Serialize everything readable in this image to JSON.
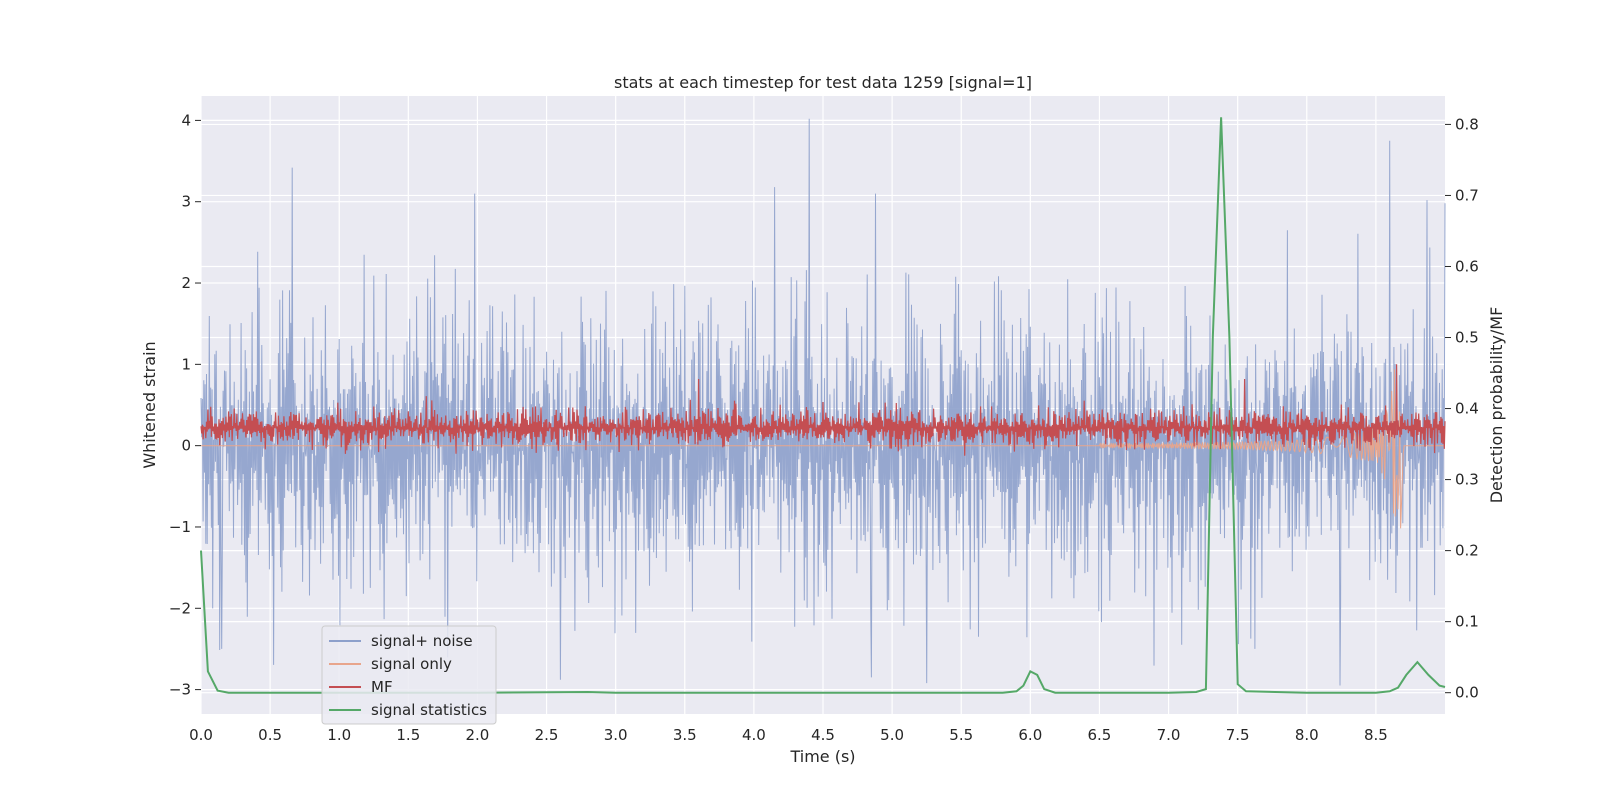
{
  "chart_data": {
    "type": "line",
    "title": "stats at each timestep for test data 1259 [signal=1]",
    "xlabel": "Time (s)",
    "ylabel_left": "Whitened strain",
    "ylabel_right": "Detection probability/MF",
    "xlim": [
      0.0,
      9.0
    ],
    "ylim_left": [
      -3.3,
      4.3
    ],
    "ylim_right": [
      -0.03,
      0.84
    ],
    "grid": true,
    "legend_position": "lower-left",
    "xticks": [
      0.0,
      0.5,
      1.0,
      1.5,
      2.0,
      2.5,
      3.0,
      3.5,
      4.0,
      4.5,
      5.0,
      5.5,
      6.0,
      6.5,
      7.0,
      7.5,
      8.0,
      8.5
    ],
    "xtick_labels": [
      "0.0",
      "0.5",
      "1.0",
      "1.5",
      "2.0",
      "2.5",
      "3.0",
      "3.5",
      "4.0",
      "4.5",
      "5.0",
      "5.5",
      "6.0",
      "6.5",
      "7.0",
      "7.5",
      "8.0",
      "8.5"
    ],
    "yticks_left": [
      -3,
      -2,
      -1,
      0,
      1,
      2,
      3,
      4
    ],
    "ytick_labels_left": [
      "−3",
      "−2",
      "−1",
      "0",
      "1",
      "2",
      "3",
      "4"
    ],
    "yticks_right": [
      0.0,
      0.1,
      0.2,
      0.3,
      0.4,
      0.5,
      0.6,
      0.7,
      0.8
    ],
    "ytick_labels_right": [
      "0.0",
      "0.1",
      "0.2",
      "0.3",
      "0.4",
      "0.5",
      "0.6",
      "0.7",
      "0.8"
    ],
    "series": [
      {
        "name": "signal+ noise",
        "axis": "left",
        "color": "#8da0cb",
        "kind": "noise",
        "amplitude_std": 0.95,
        "sample_count": 1800,
        "peaks": [
          [
            0.66,
            3.42
          ],
          [
            1.98,
            3.1
          ],
          [
            4.4,
            4.02
          ],
          [
            4.15,
            3.18
          ],
          [
            4.88,
            3.1
          ],
          [
            8.6,
            3.75
          ],
          [
            8.87,
            3.02
          ],
          [
            9.0,
            2.98
          ],
          [
            2.6,
            -2.88
          ],
          [
            4.85,
            -2.85
          ],
          [
            5.25,
            -2.92
          ],
          [
            8.24,
            -2.95
          ],
          [
            0.15,
            -2.5
          ]
        ]
      },
      {
        "name": "signal only",
        "axis": "left",
        "color": "#e8a58c",
        "kind": "chirp",
        "chirp_end": 8.68,
        "chirp_min": -0.95
      },
      {
        "name": "MF",
        "axis": "left",
        "color": "#c44e52",
        "kind": "band",
        "center": 0.22,
        "spread": 0.22,
        "sample_count": 1800,
        "peaks": [
          [
            3.6,
            0.82
          ],
          [
            7.55,
            0.82
          ],
          [
            8.65,
            1.0
          ]
        ]
      },
      {
        "name": "signal statistics",
        "axis": "right",
        "color": "#55a868",
        "kind": "line",
        "x": [
          0.0,
          0.05,
          0.12,
          0.2,
          0.3,
          1.0,
          2.0,
          2.8,
          3.0,
          4.0,
          5.0,
          5.8,
          5.9,
          5.95,
          6.0,
          6.05,
          6.1,
          6.18,
          6.5,
          7.0,
          7.2,
          7.27,
          7.32,
          7.38,
          7.44,
          7.5,
          7.56,
          8.0,
          8.5,
          8.6,
          8.66,
          8.72,
          8.8,
          8.88,
          8.96,
          9.0
        ],
        "y": [
          0.2,
          0.03,
          0.003,
          0.0,
          0.0,
          0.0,
          0.0,
          0.001,
          0.0,
          0.0,
          0.0,
          0.0,
          0.002,
          0.01,
          0.03,
          0.025,
          0.005,
          0.0,
          0.0,
          0.0,
          0.001,
          0.005,
          0.5,
          0.81,
          0.5,
          0.012,
          0.002,
          0.0,
          0.0,
          0.002,
          0.007,
          0.025,
          0.043,
          0.025,
          0.01,
          0.008
        ]
      }
    ]
  }
}
